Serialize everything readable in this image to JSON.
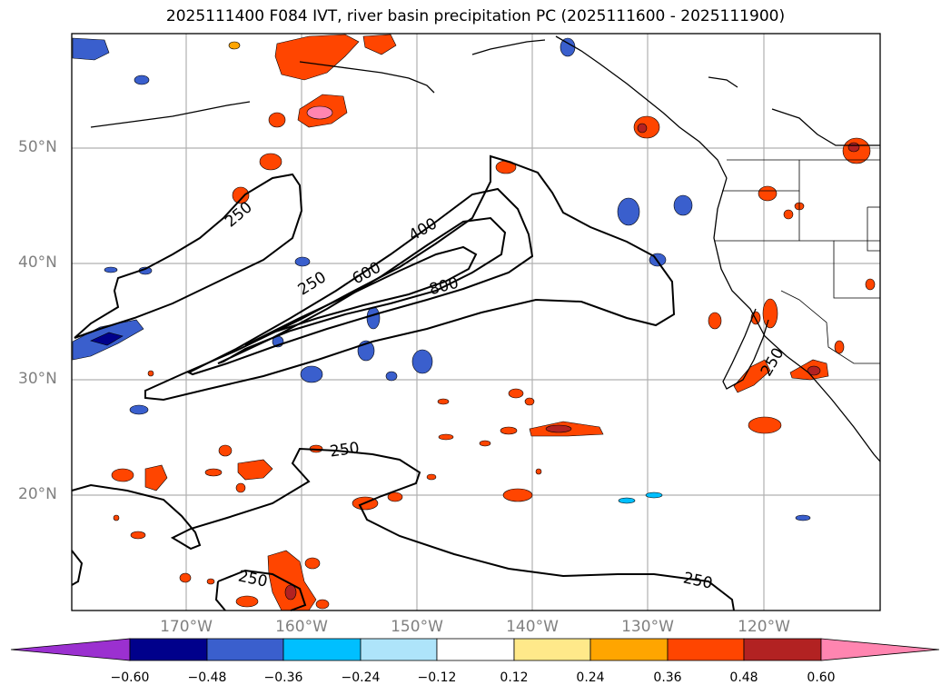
{
  "title": "2025111400 F084 IVT, river basin precipitation PC (2025111600 - 2025111900)",
  "lat_labels": [
    "50°N",
    "40°N",
    "30°N",
    "20°N"
  ],
  "lon_labels": [
    "170°W",
    "160°W",
    "150°W",
    "140°W",
    "130°W",
    "120°W"
  ],
  "contour_labels": [
    "250",
    "400",
    "600",
    "800",
    "250",
    "250",
    "250",
    "250",
    "250"
  ],
  "colorbar": {
    "ticks": [
      "−0.60",
      "−0.48",
      "−0.36",
      "−0.24",
      "−0.12",
      "0.12",
      "0.24",
      "0.36",
      "0.48",
      "0.60"
    ],
    "under_color": "#9b30d0",
    "over_color": "#ff85b0",
    "bin_colors": [
      "#00008b",
      "#3a5fcd",
      "#00bfff",
      "#aee4fa",
      "#ffffff",
      "#ffe98a",
      "#ffa500",
      "#ff4500",
      "#b22222"
    ]
  },
  "colors": {
    "contour": "#000000",
    "grid": "#b0b0b0",
    "axis_label": "#808080"
  }
}
